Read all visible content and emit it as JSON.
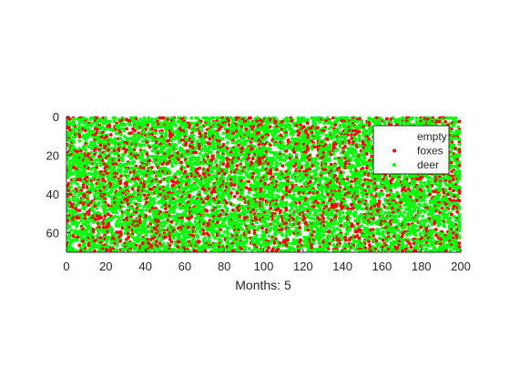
{
  "chart_data": {
    "type": "scatter",
    "title": "",
    "xlabel": "Months: 5",
    "ylabel": "",
    "xlim": [
      0,
      200
    ],
    "ylim": [
      0,
      70
    ],
    "y_axis_direction": "reversed",
    "x_ticks": [
      0,
      20,
      40,
      60,
      80,
      100,
      120,
      140,
      160,
      180,
      200
    ],
    "x_tick_labels": [
      "0",
      "20",
      "40",
      "60",
      "80",
      "100",
      "120",
      "140",
      "160",
      "180",
      "200"
    ],
    "y_ticks": [
      0,
      20,
      40,
      60
    ],
    "y_tick_labels": [
      "0",
      "20",
      "40",
      "60"
    ],
    "grid": false,
    "legend_position": "top-right",
    "grid_size": {
      "columns": 200,
      "rows": 70
    },
    "densities": {
      "empty": 0.5,
      "foxes": 0.13,
      "deer": 0.37
    },
    "series": [
      {
        "name": "empty",
        "color": "#ffffff"
      },
      {
        "name": "foxes",
        "color": "#ff0000"
      },
      {
        "name": "deer",
        "color": "#00ff00"
      }
    ]
  }
}
